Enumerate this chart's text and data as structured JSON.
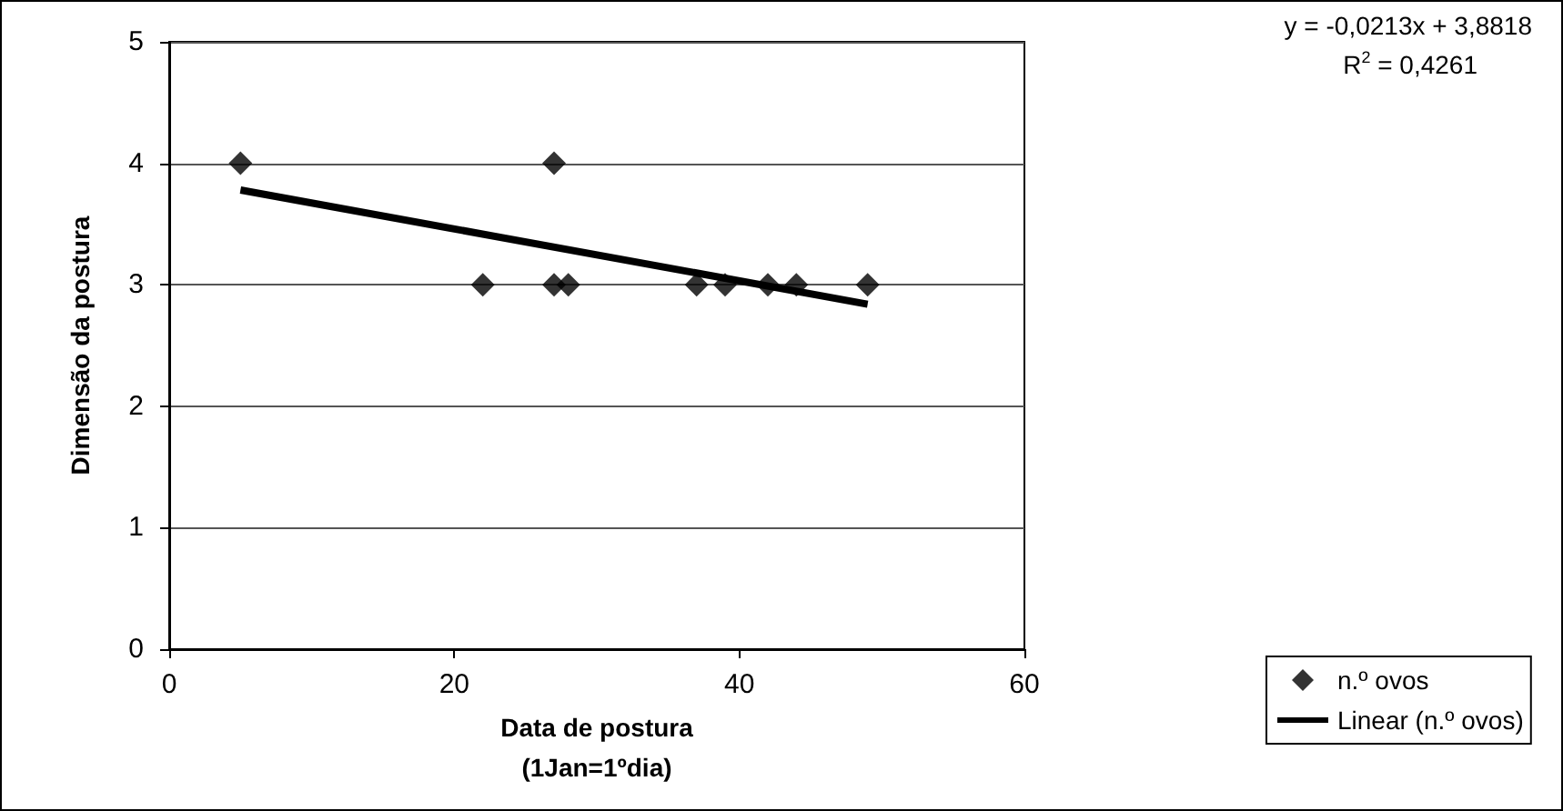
{
  "chart_data": {
    "type": "scatter",
    "xlabel": "Data de postura\n(1Jan=1ºdia)",
    "ylabel": "Dimensão da postura",
    "annotations": [
      "y = -0,0213x + 3,8818",
      "R$^{2}$ = 0,4261"
    ],
    "series": [
      {
        "name": "n.º ovos",
        "color": "#000000",
        "marker": "diamond",
        "x": [
          5,
          22,
          27,
          27,
          28,
          37,
          39,
          42,
          44,
          49
        ],
        "values": [
          4,
          3,
          4,
          3,
          3,
          3,
          3,
          3,
          3,
          3
        ]
      },
      {
        "name": "Linear (n.º ovos)",
        "type": "line",
        "color": "#000000",
        "line_style": "solid",
        "marker": "none",
        "x": [
          5,
          49
        ],
        "values": [
          3.78,
          2.84
        ]
      }
    ],
    "xlim": [
      0,
      60
    ],
    "xticks": [
      0,
      20,
      40,
      60
    ],
    "ylim": [
      0,
      5
    ],
    "yticks": [
      0,
      1,
      2,
      3,
      4,
      5
    ],
    "grid": "y",
    "legend": "bottom right"
  }
}
